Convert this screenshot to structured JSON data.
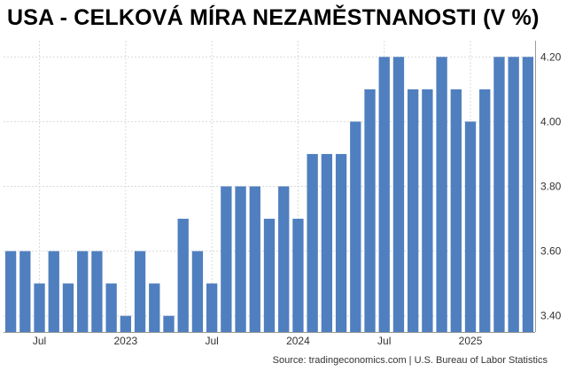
{
  "chart_data": {
    "type": "bar",
    "title": "USA - CELKOVÁ MÍRA NEZAMĚSTNANOSTI (V %)",
    "source": "Source: tradingeconomics.com | U.S. Bureau of Labor Statistics",
    "xlabel": "",
    "ylabel": "",
    "ylim": [
      3.35,
      4.25
    ],
    "yticks": [
      "4.20",
      "4.00",
      "3.80",
      "3.60",
      "3.40"
    ],
    "ytick_values": [
      4.2,
      4.0,
      3.8,
      3.6,
      3.4
    ],
    "y_axis_position": "right",
    "grid": true,
    "bar_color": "#4f7fbf",
    "categories": [
      "2022-05",
      "2022-06",
      "2022-07",
      "2022-08",
      "2022-09",
      "2022-10",
      "2022-11",
      "2022-12",
      "2023-01",
      "2023-02",
      "2023-03",
      "2023-04",
      "2023-05",
      "2023-06",
      "2023-07",
      "2023-08",
      "2023-09",
      "2023-10",
      "2023-11",
      "2023-12",
      "2024-01",
      "2024-02",
      "2024-03",
      "2024-04",
      "2024-05",
      "2024-06",
      "2024-07",
      "2024-08",
      "2024-09",
      "2024-10",
      "2024-11",
      "2024-12",
      "2025-01",
      "2025-02",
      "2025-03",
      "2025-04",
      "2025-05"
    ],
    "values": [
      3.6,
      3.6,
      3.5,
      3.6,
      3.5,
      3.6,
      3.6,
      3.5,
      3.4,
      3.6,
      3.5,
      3.4,
      3.7,
      3.6,
      3.5,
      3.8,
      3.8,
      3.8,
      3.7,
      3.8,
      3.7,
      3.9,
      3.9,
      3.9,
      4.0,
      4.1,
      4.2,
      4.2,
      4.1,
      4.1,
      4.2,
      4.1,
      4.0,
      4.1,
      4.2,
      4.2,
      4.2
    ],
    "x_tick_labels": [
      {
        "label": "Jul",
        "index": 2
      },
      {
        "label": "2023",
        "index": 8
      },
      {
        "label": "Jul",
        "index": 14
      },
      {
        "label": "2024",
        "index": 20
      },
      {
        "label": "Jul",
        "index": 26
      },
      {
        "label": "2025",
        "index": 32
      }
    ]
  }
}
